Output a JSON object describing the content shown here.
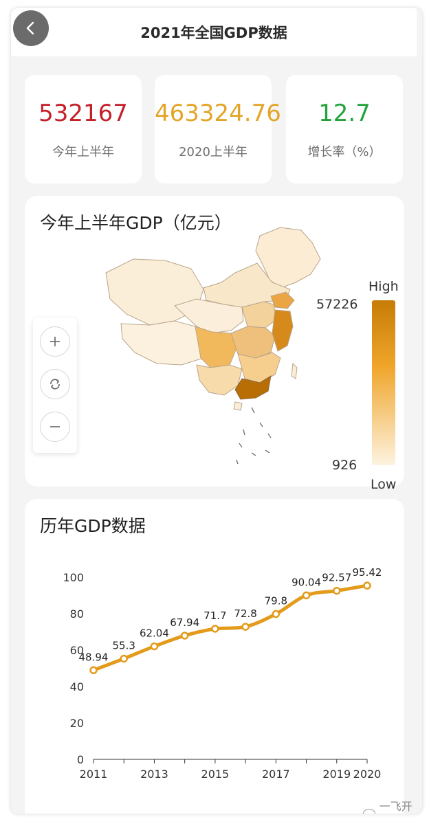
{
  "header": {
    "title": "2021年全国GDP数据",
    "back_icon": "chevron-left-icon"
  },
  "stats": [
    {
      "value": "532167",
      "label": "今年上半年",
      "color": "#c4202a"
    },
    {
      "value": "463324.76",
      "label": "2020上半年",
      "color": "#e3a528"
    },
    {
      "value": "12.7",
      "label": "增长率（%）",
      "color": "#21a33a"
    }
  ],
  "map_card": {
    "title": "今年上半年GDP（亿元）",
    "legend": {
      "high_label": "High",
      "low_label": "Low",
      "max": "57226",
      "min": "926",
      "high_color": "#c67c06",
      "low_color": "#fdf3e0"
    },
    "controls": {
      "zoom_in_icon": "plus-icon",
      "reset_icon": "refresh-icon",
      "zoom_out_icon": "minus-icon"
    }
  },
  "trend_card": {
    "title": "历年GDP数据"
  },
  "chart_data": {
    "type": "line",
    "x": [
      2011,
      2012,
      2013,
      2014,
      2015,
      2016,
      2017,
      2018,
      2019,
      2020
    ],
    "x_tick_labels": [
      "2011",
      "2013",
      "2015",
      "2017",
      "2019",
      "2020"
    ],
    "y_tick_labels": [
      "0",
      "20",
      "40",
      "60",
      "80",
      "100"
    ],
    "series": [
      {
        "values": [
          48.94,
          55.3,
          62.04,
          67.94,
          71.7,
          72.8,
          79.8,
          90.04,
          92.57,
          95.42
        ],
        "color": "#e39b1b"
      }
    ],
    "point_labels": [
      "48.94",
      "55.3",
      "62.04",
      "67.94",
      "71.7",
      "72.8",
      "79.8",
      "90.04",
      "92.57",
      "95.42"
    ],
    "ylim": [
      0,
      100
    ],
    "grid": false,
    "smooth": true
  },
  "watermark": "一飞开源"
}
